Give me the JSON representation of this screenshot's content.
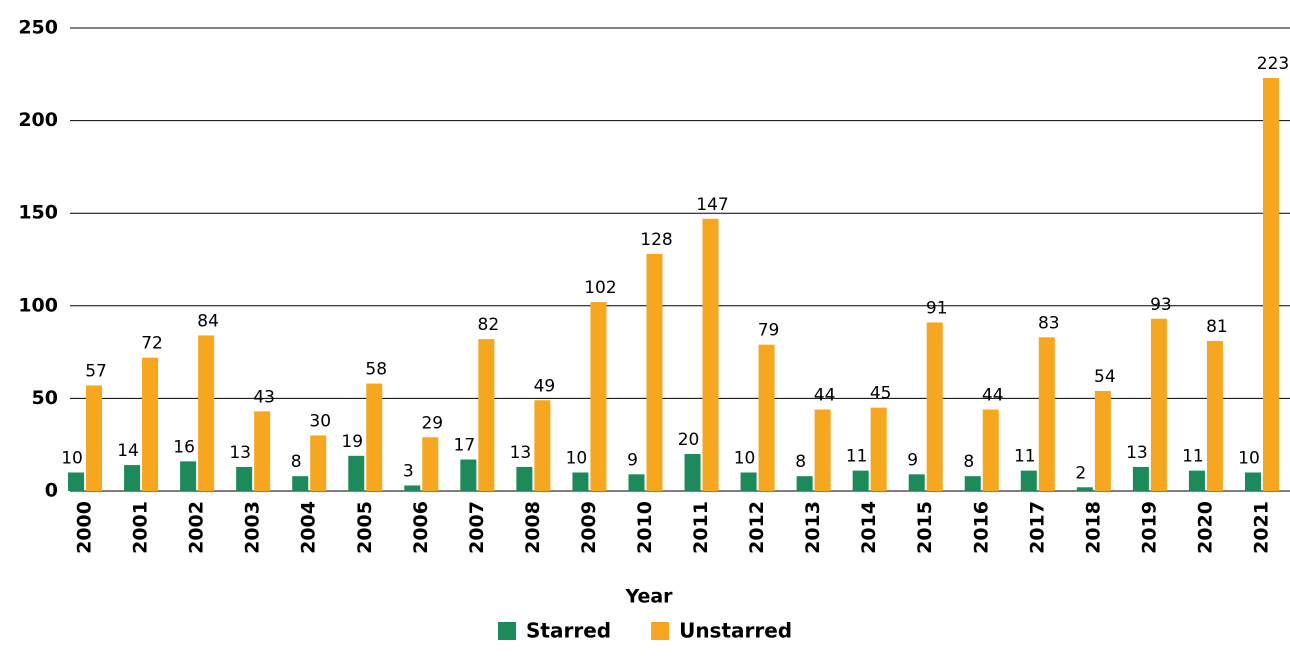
{
  "chart_data": {
    "type": "bar",
    "x_label": "Year",
    "categories": [
      "2000",
      "2001",
      "2002",
      "2003",
      "2004",
      "2005",
      "2006",
      "2007",
      "2008",
      "2009",
      "2010",
      "2011",
      "2012",
      "2013",
      "2014",
      "2015",
      "2016",
      "2017",
      "2018",
      "2019",
      "2020",
      "2021"
    ],
    "series": [
      {
        "name": "Starred",
        "color": "#1d8a5c",
        "values": [
          10,
          14,
          16,
          13,
          8,
          19,
          3,
          17,
          13,
          10,
          9,
          20,
          10,
          8,
          11,
          9,
          8,
          11,
          2,
          13,
          11,
          10
        ]
      },
      {
        "name": "Unstarred",
        "color": "#f6a71f",
        "values": [
          57,
          72,
          84,
          43,
          30,
          58,
          29,
          82,
          49,
          102,
          128,
          147,
          79,
          44,
          45,
          91,
          44,
          83,
          54,
          93,
          81,
          223
        ]
      }
    ],
    "ylim": [
      0,
      250
    ],
    "yticks": [
      0,
      50,
      100,
      150,
      200,
      250
    ],
    "grid": true,
    "legend": "bottom"
  }
}
